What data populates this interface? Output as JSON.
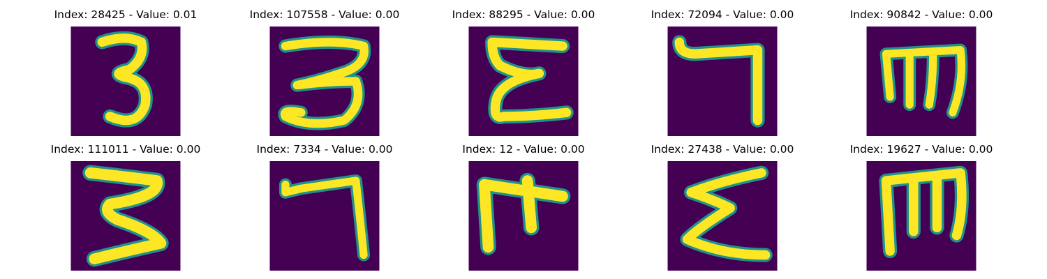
{
  "colors": {
    "background": "#440154",
    "stroke": "#fde725",
    "edge": "#21918c"
  },
  "panels": [
    {
      "title": "Index: 28425 - Value: 0.01",
      "glyph": "three"
    },
    {
      "title": "Index: 107558 - Value: 0.00",
      "glyph": "three-wide"
    },
    {
      "title": "Index: 88295 - Value: 0.00",
      "glyph": "epsilon"
    },
    {
      "title": "Index: 72094 - Value: 0.00",
      "glyph": "seven"
    },
    {
      "title": "Index: 90842 - Value: 0.00",
      "glyph": "m-rotated"
    },
    {
      "title": "Index: 111011 - Value: 0.00",
      "glyph": "three-bold"
    },
    {
      "title": "Index: 7334 - Value: 0.00",
      "glyph": "seven"
    },
    {
      "title": "Index: 12 - Value: 0.00",
      "glyph": "f-rotated"
    },
    {
      "title": "Index: 27438 - Value: 0.00",
      "glyph": "sigma"
    },
    {
      "title": "Index: 19627 - Value: 0.00",
      "glyph": "m-rotated"
    }
  ]
}
